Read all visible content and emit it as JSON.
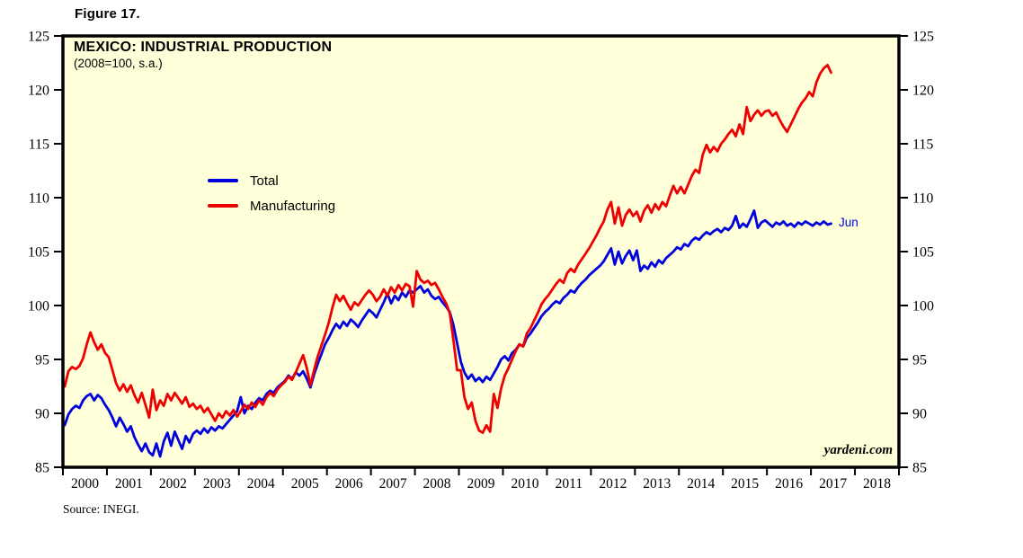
{
  "figure_label": "Figure 17.",
  "source_note": "Source: INEGI.",
  "watermark": "yardeni.com",
  "end_label": "Jun",
  "colors": {
    "total": "#0000dd",
    "manufacturing": "#ee0000",
    "plot_bg": "#ffffd9",
    "frame": "#000000",
    "text": "#000000"
  },
  "legend": [
    {
      "label": "Total",
      "color": "#0000dd"
    },
    {
      "label": "Manufacturing",
      "color": "#ee0000"
    }
  ],
  "chart_data": {
    "type": "line",
    "title": "MEXICO: INDUSTRIAL PRODUCTION",
    "subtitle": "(2008=100, s.a.)",
    "grid": false,
    "legend_position": "inside-upper-left",
    "ylim": [
      85,
      125
    ],
    "y_ticks": [
      85,
      90,
      95,
      100,
      105,
      110,
      115,
      120,
      125
    ],
    "y_ticks_both_sides": true,
    "x_axis_years": [
      "2000",
      "2001",
      "2002",
      "2003",
      "2004",
      "2005",
      "2006",
      "2007",
      "2008",
      "2009",
      "2010",
      "2011",
      "2012",
      "2013",
      "2014",
      "2015",
      "2016",
      "2017",
      "2018"
    ],
    "x_start": {
      "year": 2000,
      "month": 1
    },
    "x_end": {
      "year": 2017,
      "month": 6
    },
    "series": [
      {
        "name": "Total",
        "color": "#0000dd",
        "end_annotation": "Jun",
        "monthly_values": [
          88.9,
          89.9,
          90.4,
          90.7,
          90.5,
          91.2,
          91.6,
          91.8,
          91.2,
          91.7,
          91.4,
          90.8,
          90.3,
          89.6,
          88.8,
          89.6,
          89.0,
          88.3,
          88.8,
          87.8,
          87.1,
          86.5,
          87.2,
          86.4,
          86.1,
          87.2,
          86.0,
          87.4,
          88.2,
          87.0,
          88.3,
          87.5,
          86.7,
          87.9,
          87.3,
          88.1,
          88.4,
          88.1,
          88.6,
          88.2,
          88.7,
          88.4,
          88.8,
          88.6,
          89.0,
          89.4,
          89.8,
          90.2,
          91.5,
          90.0,
          90.7,
          90.4,
          91.0,
          91.4,
          91.2,
          91.8,
          92.1,
          91.9,
          92.4,
          92.7,
          93.0,
          93.5,
          93.2,
          93.8,
          93.5,
          93.9,
          93.2,
          92.4,
          93.6,
          94.6,
          95.5,
          96.4,
          97.0,
          97.7,
          98.3,
          97.9,
          98.5,
          98.1,
          98.7,
          98.4,
          98.0,
          98.6,
          99.1,
          99.6,
          99.3,
          98.9,
          99.6,
          100.3,
          101.1,
          100.2,
          100.9,
          100.5,
          101.2,
          100.8,
          101.4,
          101.2,
          101.5,
          101.8,
          101.2,
          101.5,
          100.9,
          100.6,
          100.8,
          100.3,
          99.9,
          99.4,
          98.2,
          96.5,
          94.8,
          93.8,
          93.2,
          93.6,
          93.0,
          93.3,
          92.9,
          93.4,
          93.1,
          93.7,
          94.3,
          95.0,
          95.3,
          94.9,
          95.6,
          95.9,
          96.4,
          96.2,
          97.0,
          97.4,
          97.9,
          98.4,
          99.0,
          99.4,
          99.7,
          100.1,
          100.4,
          100.2,
          100.7,
          101.0,
          101.4,
          101.2,
          101.7,
          102.1,
          102.4,
          102.8,
          103.1,
          103.4,
          103.7,
          104.1,
          104.7,
          105.3,
          103.8,
          105.0,
          103.9,
          104.6,
          105.1,
          104.2,
          105.1,
          103.2,
          103.7,
          103.4,
          104.0,
          103.6,
          104.2,
          103.9,
          104.4,
          104.7,
          105.0,
          105.4,
          105.2,
          105.7,
          105.5,
          106.0,
          106.3,
          106.1,
          106.5,
          106.8,
          106.6,
          106.9,
          107.1,
          106.8,
          107.2,
          107.0,
          107.4,
          108.3,
          107.2,
          107.6,
          107.3,
          108.0,
          108.8,
          107.2,
          107.7,
          107.9,
          107.6,
          107.3,
          107.7,
          107.5,
          107.8,
          107.4,
          107.6,
          107.3,
          107.7,
          107.5,
          107.8,
          107.6,
          107.4,
          107.7,
          107.5,
          107.8,
          107.5,
          107.6
        ]
      },
      {
        "name": "Manufacturing",
        "color": "#ee0000",
        "monthly_values": [
          92.5,
          93.9,
          94.3,
          94.1,
          94.4,
          95.1,
          96.4,
          97.5,
          96.6,
          95.9,
          96.4,
          95.6,
          95.2,
          94.0,
          92.8,
          92.1,
          92.7,
          92.0,
          92.6,
          91.7,
          91.0,
          91.9,
          90.8,
          89.6,
          92.2,
          90.3,
          91.2,
          90.7,
          91.8,
          91.2,
          91.9,
          91.4,
          90.9,
          91.5,
          90.6,
          90.9,
          90.4,
          90.7,
          90.1,
          90.5,
          89.9,
          89.3,
          90.0,
          89.6,
          90.2,
          89.8,
          90.3,
          89.7,
          90.2,
          90.8,
          90.4,
          91.0,
          90.6,
          91.2,
          90.8,
          91.5,
          91.9,
          91.6,
          92.2,
          92.6,
          92.9,
          93.4,
          93.1,
          93.8,
          94.6,
          95.4,
          94.2,
          92.6,
          94.0,
          95.3,
          96.3,
          97.3,
          98.4,
          99.8,
          101.0,
          100.4,
          100.9,
          100.2,
          99.6,
          100.3,
          100.0,
          100.5,
          101.0,
          101.4,
          101.0,
          100.4,
          100.8,
          101.5,
          100.9,
          101.7,
          101.2,
          101.9,
          101.4,
          102.0,
          101.8,
          99.9,
          103.2,
          102.4,
          102.1,
          102.3,
          101.9,
          102.1,
          101.5,
          100.8,
          100.2,
          99.3,
          96.8,
          94.0,
          94.0,
          91.5,
          90.4,
          91.0,
          89.3,
          88.4,
          88.2,
          88.9,
          88.3,
          91.8,
          90.5,
          92.3,
          93.5,
          94.2,
          95.0,
          95.8,
          96.4,
          96.2,
          97.4,
          97.9,
          98.6,
          99.3,
          100.1,
          100.6,
          101.0,
          101.5,
          102.0,
          102.4,
          102.1,
          103.0,
          103.4,
          103.1,
          103.8,
          104.3,
          104.8,
          105.3,
          105.9,
          106.5,
          107.2,
          107.8,
          108.9,
          109.6,
          107.6,
          109.1,
          107.4,
          108.4,
          108.9,
          108.3,
          108.7,
          107.8,
          108.8,
          109.3,
          108.6,
          109.4,
          108.9,
          109.6,
          109.2,
          110.2,
          111.1,
          110.4,
          111.0,
          110.4,
          111.2,
          112.0,
          112.6,
          112.3,
          114.0,
          114.9,
          114.2,
          114.7,
          114.3,
          115.0,
          115.4,
          115.9,
          116.3,
          115.7,
          116.8,
          115.9,
          118.4,
          117.1,
          117.7,
          118.1,
          117.6,
          118.0,
          118.1,
          117.6,
          117.9,
          117.2,
          116.6,
          116.1,
          116.8,
          117.5,
          118.2,
          118.8,
          119.2,
          119.8,
          119.4,
          120.7,
          121.5,
          122.0,
          122.3,
          121.6
        ]
      }
    ]
  }
}
